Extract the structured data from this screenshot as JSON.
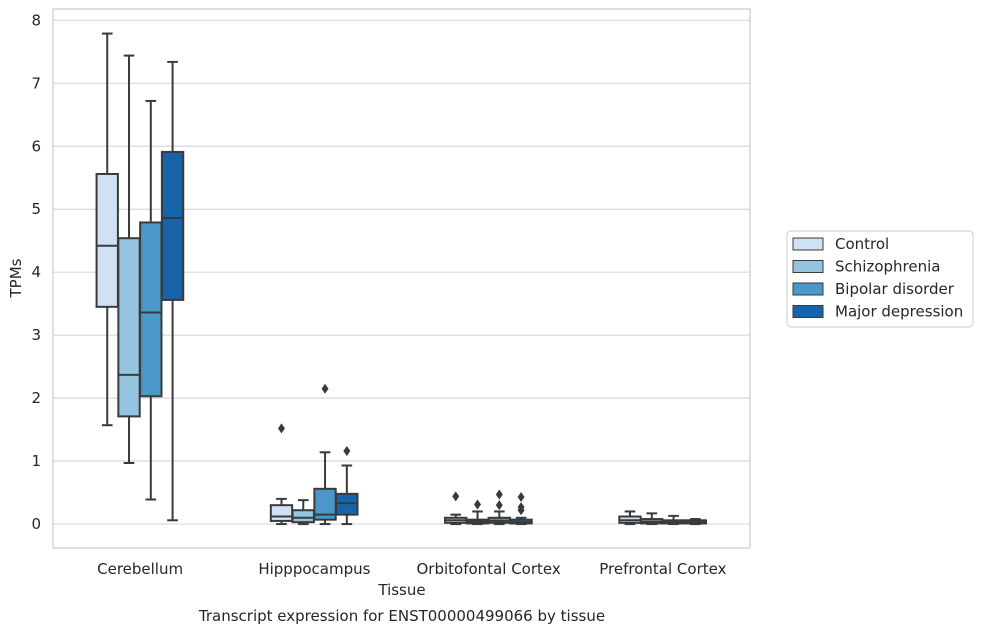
{
  "chart_data": {
    "type": "boxplot",
    "title": "Transcript expression for ENST00000499066 by tissue",
    "xlabel": "Tissue",
    "ylabel": "TPMs",
    "ylim": [
      -0.38,
      8.18
    ],
    "yticks": [
      0,
      1,
      2,
      3,
      4,
      5,
      6,
      7,
      8
    ],
    "grid": "horizontal",
    "legend_position": "right",
    "categories": [
      "Cerebellum",
      "Hipppocampus",
      "Orbitofontal Cortex",
      "Prefrontal Cortex"
    ],
    "colors": {
      "Control": "#cfe1f2",
      "Schizophrenia": "#94c4df",
      "Bipolar disorder": "#4a98c9",
      "Major depression": "#1764ab",
      "edge": "#3a3a3a",
      "grid": "#d9d9d9"
    },
    "series": [
      {
        "name": "Control",
        "boxes": [
          {
            "whislo": 1.57,
            "q1": 3.45,
            "med": 4.42,
            "q3": 5.56,
            "whishi": 7.79,
            "fliers": []
          },
          {
            "whislo": 0.0,
            "q1": 0.05,
            "med": 0.12,
            "q3": 0.3,
            "whishi": 0.4,
            "fliers": [
              1.52
            ]
          },
          {
            "whislo": 0.0,
            "q1": 0.02,
            "med": 0.06,
            "q3": 0.1,
            "whishi": 0.15,
            "fliers": [
              0.44
            ]
          },
          {
            "whislo": 0.0,
            "q1": 0.02,
            "med": 0.06,
            "q3": 0.12,
            "whishi": 0.2,
            "fliers": []
          }
        ]
      },
      {
        "name": "Schizophrenia",
        "boxes": [
          {
            "whislo": 0.97,
            "q1": 1.71,
            "med": 2.37,
            "q3": 4.54,
            "whishi": 7.44,
            "fliers": []
          },
          {
            "whislo": 0.0,
            "q1": 0.03,
            "med": 0.1,
            "q3": 0.22,
            "whishi": 0.38,
            "fliers": []
          },
          {
            "whislo": 0.0,
            "q1": 0.01,
            "med": 0.04,
            "q3": 0.07,
            "whishi": 0.2,
            "fliers": [
              0.31
            ]
          },
          {
            "whislo": 0.0,
            "q1": 0.01,
            "med": 0.04,
            "q3": 0.08,
            "whishi": 0.17,
            "fliers": []
          }
        ]
      },
      {
        "name": "Bipolar disorder",
        "boxes": [
          {
            "whislo": 0.39,
            "q1": 2.03,
            "med": 3.36,
            "q3": 4.79,
            "whishi": 6.72,
            "fliers": []
          },
          {
            "whislo": 0.0,
            "q1": 0.07,
            "med": 0.15,
            "q3": 0.56,
            "whishi": 1.14,
            "fliers": [
              2.15
            ]
          },
          {
            "whislo": 0.0,
            "q1": 0.02,
            "med": 0.05,
            "q3": 0.1,
            "whishi": 0.2,
            "fliers": [
              0.3,
              0.47
            ]
          },
          {
            "whislo": 0.0,
            "q1": 0.01,
            "med": 0.03,
            "q3": 0.06,
            "whishi": 0.13,
            "fliers": []
          }
        ]
      },
      {
        "name": "Major depression",
        "boxes": [
          {
            "whislo": 0.06,
            "q1": 3.56,
            "med": 4.86,
            "q3": 5.91,
            "whishi": 7.34,
            "fliers": []
          },
          {
            "whislo": 0.0,
            "q1": 0.15,
            "med": 0.33,
            "q3": 0.48,
            "whishi": 0.93,
            "fliers": [
              1.16
            ]
          },
          {
            "whislo": 0.0,
            "q1": 0.01,
            "med": 0.03,
            "q3": 0.07,
            "whishi": 0.1,
            "fliers": [
              0.22,
              0.27,
              0.43
            ]
          },
          {
            "whislo": 0.0,
            "q1": 0.01,
            "med": 0.03,
            "q3": 0.06,
            "whishi": 0.08,
            "fliers": []
          }
        ]
      }
    ]
  }
}
